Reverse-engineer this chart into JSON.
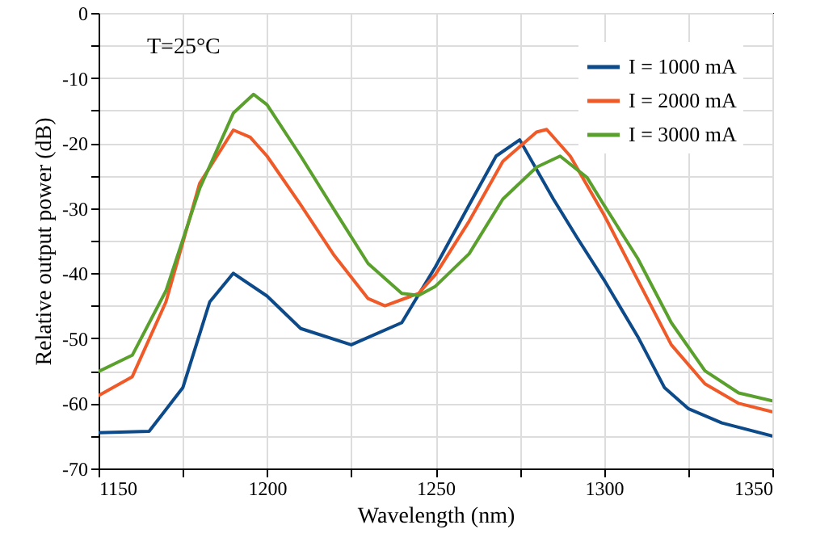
{
  "chart_data": {
    "type": "line",
    "xlabel": "Wavelength (nm)",
    "ylabel": "Relative output power (dB)",
    "annotations": [
      "T=25°C"
    ],
    "xlim": [
      1150,
      1350
    ],
    "xticks": [
      1150,
      {
        "value": 1175,
        "label": null
      },
      1200,
      {
        "value": 1225,
        "label": null
      },
      1250,
      {
        "value": 1275,
        "label": null
      },
      1300,
      {
        "value": 1325,
        "label": null
      },
      1350
    ],
    "ylim": [
      -70,
      0
    ],
    "yticks": [
      -70,
      {
        "value": -65,
        "label": null
      },
      -60,
      {
        "value": -55,
        "label": null
      },
      -50,
      {
        "value": -45,
        "label": null
      },
      -40,
      {
        "value": -35,
        "label": null
      },
      -30,
      {
        "value": -25,
        "label": null
      },
      -20,
      {
        "value": -15,
        "label": null
      },
      -10,
      {
        "value": -5,
        "label": null
      },
      0
    ],
    "grid": true,
    "legend": "top right",
    "line_style": "solid",
    "series": [
      {
        "name": "I = 1000 mA",
        "color": "#0d4a8a",
        "x": [
          1150,
          1165,
          1175,
          1183,
          1190,
          1200,
          1210,
          1225,
          1240,
          1250,
          1260,
          1268,
          1275,
          1285,
          1292,
          1300,
          1310,
          1318,
          1325,
          1335,
          1350
        ],
        "values": [
          -64.5,
          -64.3,
          -57.6,
          -44.4,
          -40,
          -43.5,
          -48.5,
          -51,
          -47.6,
          -39,
          -29.5,
          -22,
          -19.5,
          -28.6,
          -34.5,
          -41,
          -49.7,
          -57.6,
          -60.8,
          -63,
          -65
        ]
      },
      {
        "name": "I = 2000 mA",
        "color": "#f05a28",
        "x": [
          1150,
          1160,
          1170,
          1180,
          1190,
          1195,
          1200,
          1210,
          1220,
          1230,
          1235,
          1245,
          1250,
          1260,
          1270,
          1280,
          1283,
          1290,
          1300,
          1310,
          1320,
          1330,
          1340,
          1350
        ],
        "values": [
          -58.8,
          -55.9,
          -44.4,
          -26.2,
          -18,
          -19.1,
          -22,
          -29.5,
          -37.3,
          -43.9,
          -45,
          -43.1,
          -40.2,
          -32,
          -22.8,
          -18.3,
          -17.9,
          -22,
          -31,
          -41,
          -51,
          -57,
          -60,
          -61.3
        ]
      },
      {
        "name": "I = 3000 mA",
        "color": "#5aa02c",
        "x": [
          1150,
          1160,
          1170,
          1180,
          1190,
          1196,
          1200,
          1210,
          1220,
          1230,
          1240,
          1245,
          1250,
          1260,
          1270,
          1280,
          1287,
          1295,
          1300,
          1310,
          1320,
          1330,
          1340,
          1350
        ],
        "values": [
          -55.1,
          -52.6,
          -42.7,
          -27,
          -15.4,
          -12.5,
          -14.1,
          -22,
          -30.3,
          -38.5,
          -43.1,
          -43.4,
          -42,
          -37,
          -28.6,
          -23.7,
          -22,
          -25.3,
          -29.5,
          -37.7,
          -47.6,
          -55,
          -58.4,
          -59.6
        ]
      }
    ]
  }
}
